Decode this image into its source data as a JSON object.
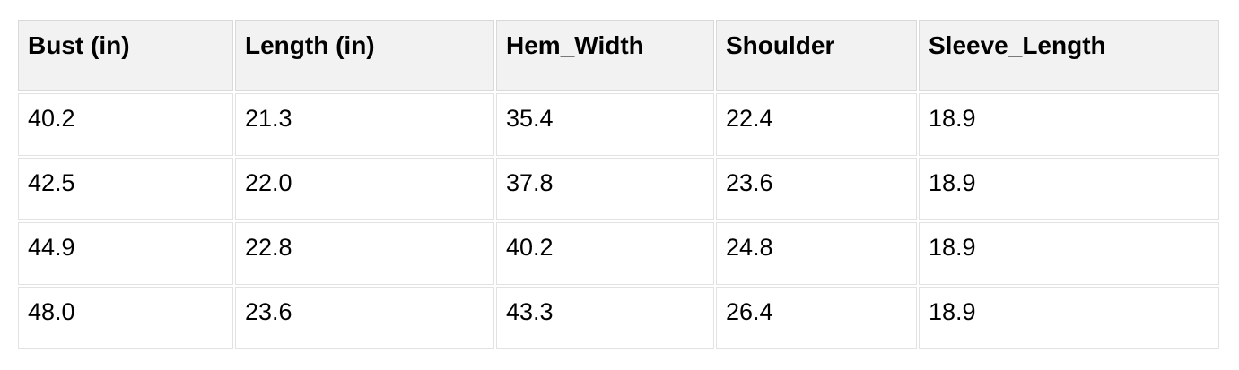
{
  "page": {
    "background": "#ffffff"
  },
  "table": {
    "columns": [
      "Bust (in)",
      "Length (in)",
      "Hem_Width",
      "Shoulder",
      "Sleeve_Length"
    ],
    "rows": [
      [
        "40.2",
        "21.3",
        "35.4",
        "22.4",
        "18.9"
      ],
      [
        "42.5",
        "22.0",
        "37.8",
        "23.6",
        "18.9"
      ],
      [
        "44.9",
        "22.8",
        "40.2",
        "24.8",
        "18.9"
      ],
      [
        "48.0",
        "23.6",
        "43.3",
        "26.4",
        "18.9"
      ]
    ],
    "style": {
      "header_bg": "#f2f2f2",
      "header_border": "#d9d9d9",
      "cell_border": "#e2e2e2",
      "text_color": "#000000"
    }
  },
  "chart_data": {
    "type": "table",
    "title": "",
    "columns": [
      "Bust (in)",
      "Length (in)",
      "Hem_Width",
      "Shoulder",
      "Sleeve_Length"
    ],
    "rows": [
      [
        40.2,
        21.3,
        35.4,
        22.4,
        18.9
      ],
      [
        42.5,
        22.0,
        37.8,
        23.6,
        18.9
      ],
      [
        44.9,
        22.8,
        40.2,
        24.8,
        18.9
      ],
      [
        48.0,
        23.6,
        43.3,
        26.4,
        18.9
      ]
    ]
  }
}
